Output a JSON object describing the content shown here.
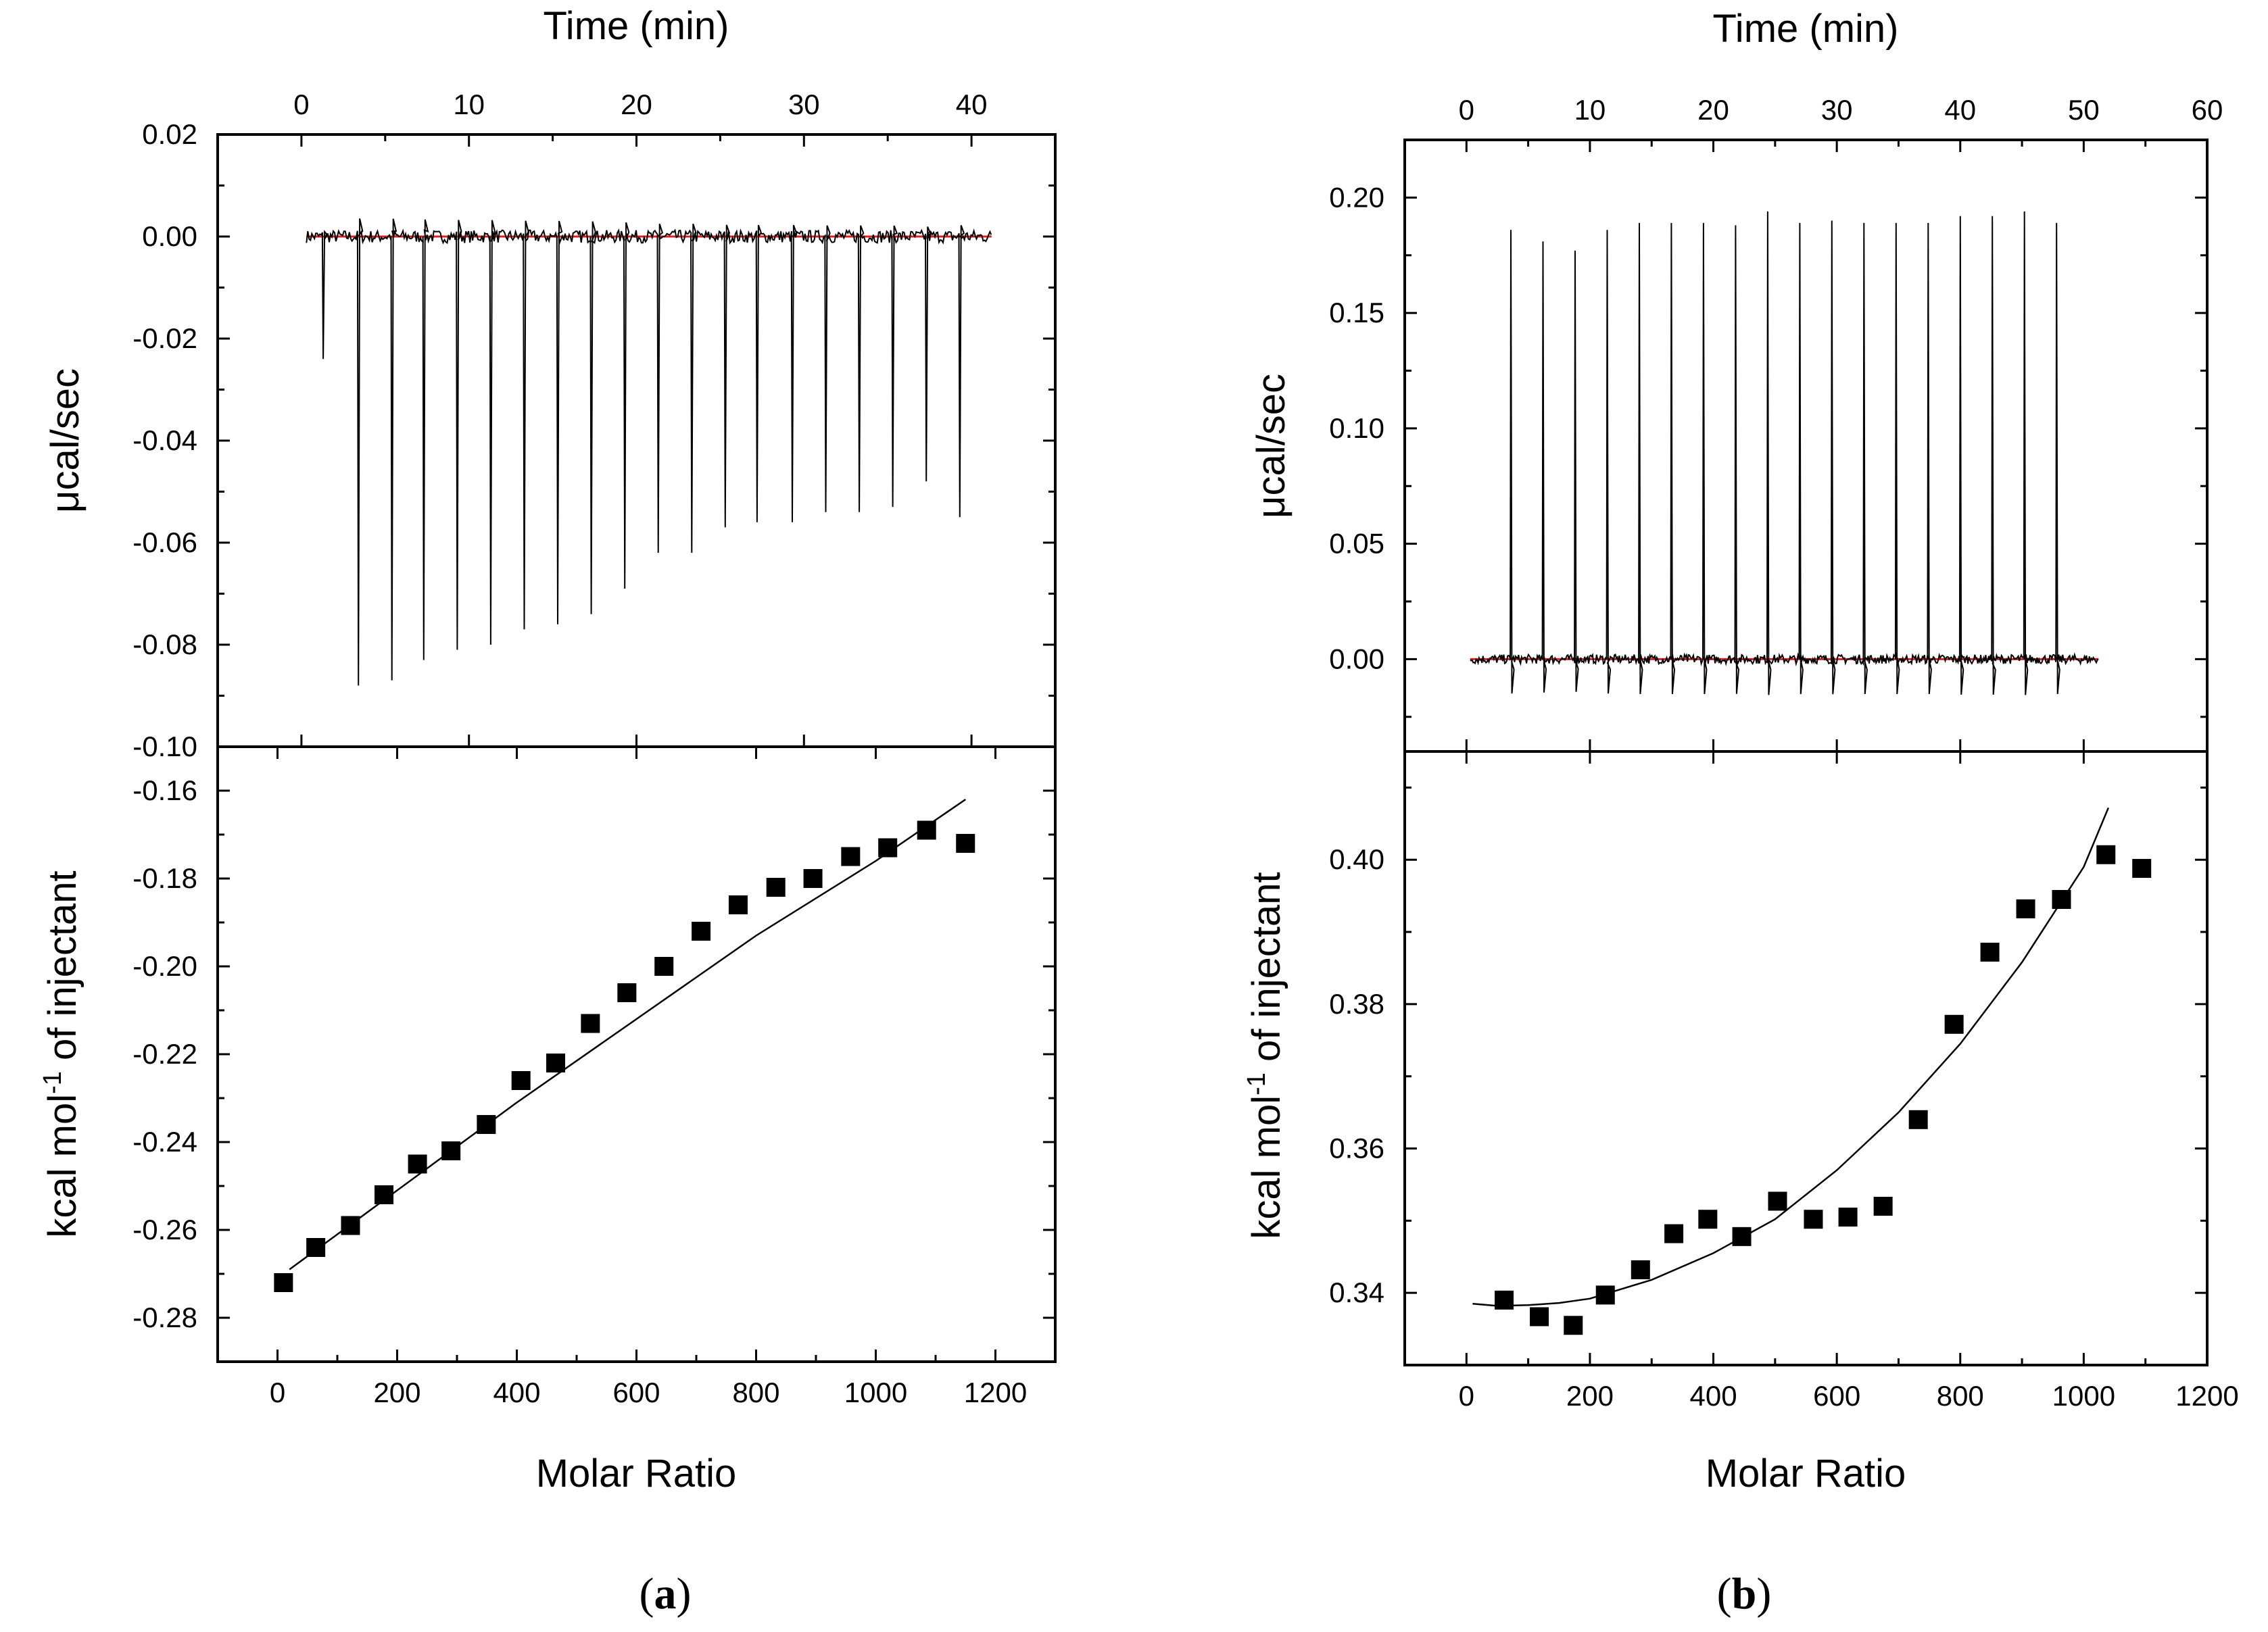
{
  "figure": {
    "panel_a_caption": {
      "open": "(",
      "letter": "a",
      "close": ")"
    },
    "panel_b_caption": {
      "open": "(",
      "letter": "b",
      "close": ")"
    }
  },
  "chart_data": [
    {
      "id": "a_top",
      "type": "line",
      "title": "",
      "xlabel": "Time (min)",
      "ylabel": "μcal/sec",
      "xlim": [
        -5,
        45
      ],
      "ylim": [
        -0.1,
        0.02
      ],
      "xticks": [
        0,
        10,
        20,
        30,
        40
      ],
      "xtick_labels": [
        "0",
        "10",
        "20",
        "30",
        "40"
      ],
      "yticks": [
        0.02,
        0.0,
        -0.02,
        -0.04,
        -0.06,
        -0.08,
        -0.1
      ],
      "ytick_labels": [
        "0.02",
        "0.00",
        "-0.02",
        "-0.04",
        "-0.06",
        "-0.08",
        "-0.10"
      ],
      "baseline": {
        "from": 0.3,
        "to": 41.2,
        "value": 0.0,
        "color": "#e02020"
      },
      "trace_range": [
        0.3,
        41.2
      ],
      "peaks": [
        {
          "t": 1.3,
          "v": -0.024
        },
        {
          "t": 3.4,
          "v": -0.088
        },
        {
          "t": 5.4,
          "v": -0.087
        },
        {
          "t": 7.3,
          "v": -0.083
        },
        {
          "t": 9.3,
          "v": -0.081
        },
        {
          "t": 11.3,
          "v": -0.08
        },
        {
          "t": 13.3,
          "v": -0.077
        },
        {
          "t": 15.3,
          "v": -0.076
        },
        {
          "t": 17.3,
          "v": -0.074
        },
        {
          "t": 19.3,
          "v": -0.069
        },
        {
          "t": 21.3,
          "v": -0.062
        },
        {
          "t": 23.3,
          "v": -0.062
        },
        {
          "t": 25.3,
          "v": -0.057
        },
        {
          "t": 27.2,
          "v": -0.056
        },
        {
          "t": 29.3,
          "v": -0.056
        },
        {
          "t": 31.3,
          "v": -0.054
        },
        {
          "t": 33.3,
          "v": -0.054
        },
        {
          "t": 35.3,
          "v": -0.053
        },
        {
          "t": 37.3,
          "v": -0.048
        },
        {
          "t": 39.3,
          "v": -0.055
        }
      ]
    },
    {
      "id": "a_bottom",
      "type": "scatter",
      "title": "",
      "xlabel": "Molar Ratio",
      "ylabel_main": "kcal mol",
      "ylabel_sup": "-1",
      "ylabel_tail": " of injectant",
      "xlim": [
        -100,
        1300
      ],
      "ylim": [
        -0.29,
        -0.15
      ],
      "xticks": [
        0,
        200,
        400,
        600,
        800,
        1000,
        1200
      ],
      "xtick_labels": [
        "0",
        "200",
        "400",
        "600",
        "800",
        "1000",
        "1200"
      ],
      "yticks": [
        -0.16,
        -0.18,
        -0.2,
        -0.22,
        -0.24,
        -0.26,
        -0.28
      ],
      "ytick_labels": [
        "-0.16",
        "-0.18",
        "-0.20",
        "-0.22",
        "-0.24",
        "-0.26",
        "-0.28"
      ],
      "x": [
        10,
        64,
        122,
        178,
        234,
        290,
        349,
        407,
        465,
        523,
        584,
        646,
        708,
        770,
        833,
        895,
        958,
        1020,
        1085,
        1150
      ],
      "y": [
        -0.272,
        -0.264,
        -0.259,
        -0.252,
        -0.245,
        -0.242,
        -0.236,
        -0.226,
        -0.222,
        -0.213,
        -0.206,
        -0.2,
        -0.192,
        -0.186,
        -0.182,
        -0.18,
        -0.175,
        -0.173,
        -0.169,
        -0.172
      ],
      "fit": {
        "x": [
          20,
          200,
          400,
          600,
          800,
          1000,
          1150
        ],
        "y": [
          -0.269,
          -0.251,
          -0.231,
          -0.212,
          -0.193,
          -0.176,
          -0.162
        ]
      }
    },
    {
      "id": "b_top",
      "type": "line",
      "title": "",
      "xlabel": "Time (min)",
      "ylabel": "μcal/sec",
      "xlim": [
        -5,
        60
      ],
      "ylim": [
        -0.04,
        0.225
      ],
      "xticks": [
        0,
        10,
        20,
        30,
        40,
        50,
        60
      ],
      "xtick_labels": [
        "0",
        "10",
        "20",
        "30",
        "40",
        "50",
        "60"
      ],
      "yticks": [
        0.2,
        0.15,
        0.1,
        0.05,
        0.0
      ],
      "ytick_labels": [
        "0.20",
        "0.15",
        "0.10",
        "0.05",
        "0.00"
      ],
      "baseline": {
        "from": 0.3,
        "to": 51.2,
        "value": 0.0,
        "color": "#e02020"
      },
      "trace_range": [
        0.3,
        51.2
      ],
      "peaks": [
        {
          "t": 3.6,
          "v": 0.186
        },
        {
          "t": 6.2,
          "v": 0.181
        },
        {
          "t": 8.8,
          "v": 0.177
        },
        {
          "t": 11.4,
          "v": 0.186
        },
        {
          "t": 14.0,
          "v": 0.189
        },
        {
          "t": 16.6,
          "v": 0.189
        },
        {
          "t": 19.2,
          "v": 0.189
        },
        {
          "t": 21.8,
          "v": 0.188
        },
        {
          "t": 24.4,
          "v": 0.194
        },
        {
          "t": 27.0,
          "v": 0.189
        },
        {
          "t": 29.6,
          "v": 0.19
        },
        {
          "t": 32.2,
          "v": 0.189
        },
        {
          "t": 34.8,
          "v": 0.189
        },
        {
          "t": 37.4,
          "v": 0.189
        },
        {
          "t": 40.0,
          "v": 0.192
        },
        {
          "t": 42.6,
          "v": 0.192
        },
        {
          "t": 45.2,
          "v": 0.194
        },
        {
          "t": 47.8,
          "v": 0.189
        }
      ]
    },
    {
      "id": "b_bottom",
      "type": "scatter",
      "title": "",
      "xlabel": "Molar Ratio",
      "ylabel_main": "kcal mol",
      "ylabel_sup": "-1",
      "ylabel_tail": " of injectant",
      "xlim": [
        -100,
        1200
      ],
      "ylim": [
        0.33,
        0.415
      ],
      "xticks": [
        0,
        200,
        400,
        600,
        800,
        1000,
        1200
      ],
      "xtick_labels": [
        "0",
        "200",
        "400",
        "600",
        "800",
        "1000",
        "1200"
      ],
      "yticks": [
        0.4,
        0.38,
        0.36,
        0.34
      ],
      "ytick_labels": [
        "0.40",
        "0.38",
        "0.36",
        "0.34"
      ],
      "x": [
        61,
        118,
        173,
        225,
        282,
        336,
        391,
        446,
        504,
        562,
        618,
        675,
        732,
        790,
        848,
        906,
        964,
        1036,
        1094
      ],
      "y": [
        0.339,
        0.3367,
        0.3355,
        0.3397,
        0.3432,
        0.3482,
        0.3502,
        0.3478,
        0.3527,
        0.3502,
        0.3505,
        0.352,
        0.364,
        0.3772,
        0.3872,
        0.3932,
        0.3945,
        0.4007,
        0.3988
      ],
      "fit": {
        "x": [
          10,
          50,
          100,
          150,
          200,
          300,
          400,
          500,
          600,
          700,
          800,
          900,
          1000,
          1040
        ],
        "y": [
          0.3385,
          0.3382,
          0.3383,
          0.3386,
          0.3392,
          0.3418,
          0.3455,
          0.3502,
          0.357,
          0.365,
          0.3745,
          0.3858,
          0.399,
          0.4072
        ]
      }
    }
  ]
}
